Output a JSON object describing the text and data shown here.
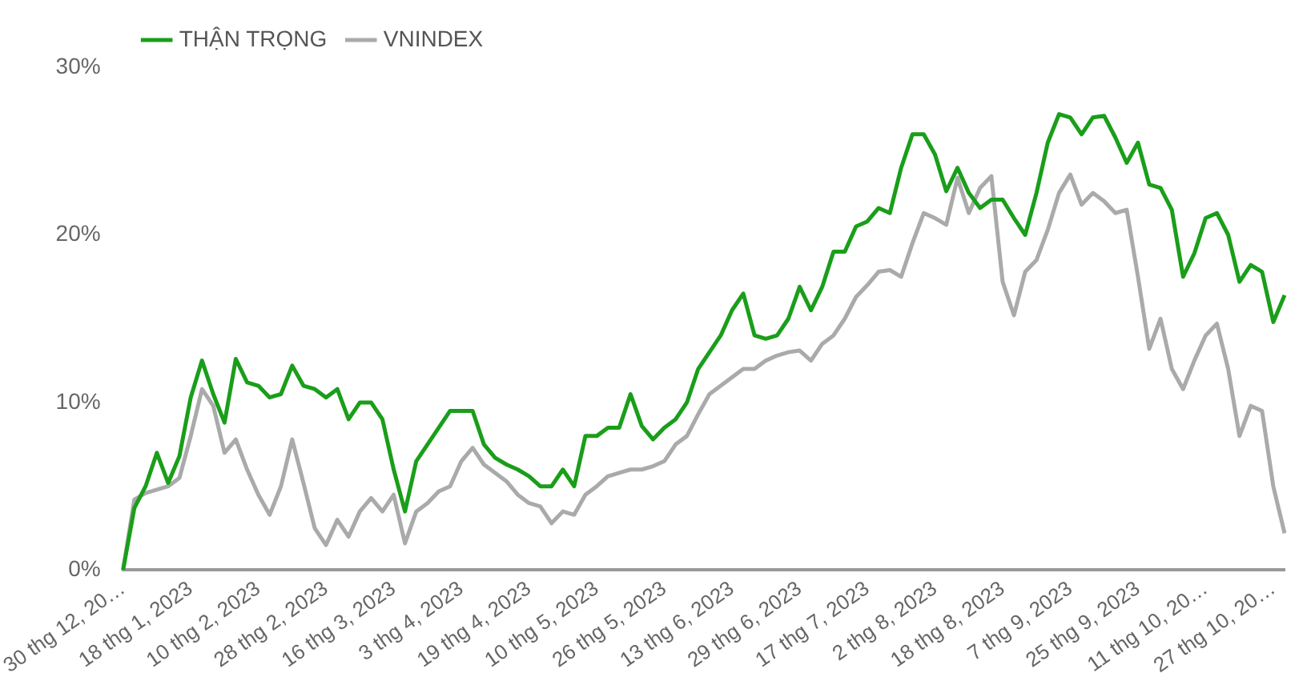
{
  "chart_data": {
    "type": "line",
    "categories": [
      "30 thg 12, 20…",
      null,
      null,
      null,
      null,
      null,
      "18 thg 1, 2023",
      null,
      null,
      null,
      null,
      null,
      "10 thg 2, 2023",
      null,
      null,
      null,
      null,
      null,
      "28 thg 2, 2023",
      null,
      null,
      null,
      null,
      null,
      "16 thg 3, 2023",
      null,
      null,
      null,
      null,
      null,
      "3 thg 4, 2023",
      null,
      null,
      null,
      null,
      null,
      "19 thg 4, 2023",
      null,
      null,
      null,
      null,
      null,
      "10 thg 5, 2023",
      null,
      null,
      null,
      null,
      null,
      "26 thg 5, 2023",
      null,
      null,
      null,
      null,
      null,
      "13 thg 6, 2023",
      null,
      null,
      null,
      null,
      null,
      "29 thg 6, 2023",
      null,
      null,
      null,
      null,
      null,
      "17 thg 7, 2023",
      null,
      null,
      null,
      null,
      null,
      "2 thg 8, 2023",
      null,
      null,
      null,
      null,
      null,
      "18 thg 8, 2023",
      null,
      null,
      null,
      null,
      null,
      "7 thg 9, 2023",
      null,
      null,
      null,
      null,
      null,
      "25 thg 9, 2023",
      null,
      null,
      null,
      null,
      null,
      "11 thg 10, 20…",
      null,
      null,
      null,
      null,
      null,
      "27 thg 10, 20…",
      null
    ],
    "series": [
      {
        "name": "THẬN TRỌNG",
        "color": "#1a9e1a",
        "values": [
          0,
          3.7,
          5,
          7,
          5.2,
          6.8,
          10.3,
          12.5,
          10.5,
          8.8,
          12.6,
          11.2,
          11,
          10.3,
          10.5,
          12.2,
          11,
          10.8,
          10.3,
          10.8,
          9,
          10,
          10,
          9,
          6,
          3.5,
          6.5,
          7.5,
          8.5,
          9.5,
          9.5,
          9.5,
          7.5,
          6.7,
          6.3,
          6,
          5.6,
          5,
          5,
          6,
          5,
          8,
          8,
          8.5,
          8.5,
          10.5,
          8.6,
          7.8,
          8.5,
          9,
          10,
          12,
          13,
          14,
          15.5,
          16.5,
          14,
          13.8,
          14,
          15,
          16.9,
          15.5,
          16.9,
          19,
          19,
          20.5,
          20.8,
          21.6,
          21.3,
          24,
          26,
          26,
          24.8,
          22.6,
          24,
          22.5,
          21.6,
          22.1,
          22.1,
          21,
          20,
          22.5,
          25.5,
          27.2,
          27,
          26,
          27,
          27.1,
          25.8,
          24.3,
          25.5,
          23,
          22.8,
          21.5,
          17.5,
          18.9,
          21,
          21.3,
          20,
          17.2,
          18.2,
          17.8,
          14.8,
          16.4
        ]
      },
      {
        "name": "VNINDEX",
        "color": "#aaaaaa",
        "values": [
          0,
          4.2,
          4.6,
          4.8,
          5,
          5.5,
          8,
          10.8,
          9.8,
          7,
          7.8,
          6,
          4.5,
          3.3,
          5,
          7.8,
          5.2,
          2.5,
          1.5,
          3,
          2,
          3.5,
          4.3,
          3.5,
          4.5,
          1.6,
          3.5,
          4,
          4.7,
          5,
          6.5,
          7.3,
          6.3,
          5.8,
          5.3,
          4.5,
          4,
          3.8,
          2.8,
          3.5,
          3.3,
          4.5,
          5,
          5.6,
          5.8,
          6,
          6,
          6.2,
          6.5,
          7.5,
          8,
          9.3,
          10.5,
          11,
          11.5,
          12,
          12,
          12.5,
          12.8,
          13,
          13.1,
          12.5,
          13.5,
          14,
          15,
          16.3,
          17,
          17.8,
          17.9,
          17.5,
          19.5,
          21.3,
          21,
          20.6,
          23.4,
          21.3,
          22.8,
          23.5,
          17.2,
          15.2,
          17.8,
          18.5,
          20.3,
          22.5,
          23.6,
          21.8,
          22.5,
          22,
          21.3,
          21.5,
          17.5,
          13.2,
          15,
          12,
          10.8,
          12.5,
          14,
          14.7,
          12,
          8,
          9.8,
          9.5,
          5,
          2.2
        ]
      }
    ],
    "ylim": [
      0,
      30
    ],
    "yticks": [
      {
        "value": 0,
        "label": "0%"
      },
      {
        "value": 10,
        "label": "10%"
      },
      {
        "value": 20,
        "label": "20%"
      },
      {
        "value": 30,
        "label": "30%"
      }
    ],
    "legend": "top left",
    "grid": false,
    "marker": "none",
    "line_style": "solid"
  }
}
